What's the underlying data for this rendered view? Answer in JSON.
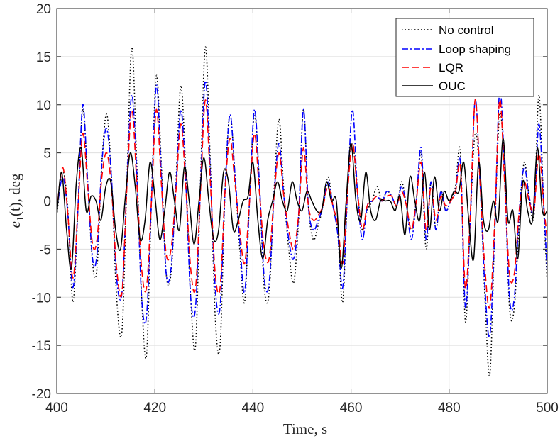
{
  "chart_data": {
    "type": "line",
    "title": "",
    "xlabel": "Time, s",
    "ylabel_main": "e",
    "ylabel_sub": "1",
    "ylabel_rest": "(t), deg",
    "xlim": [
      400,
      500
    ],
    "ylim": [
      -20,
      20
    ],
    "xticks": [
      400,
      420,
      440,
      460,
      480,
      500
    ],
    "yticks": [
      20,
      15,
      10,
      5,
      0,
      -5,
      -10,
      -15,
      -20
    ],
    "grid": true,
    "legend_position": "top-right",
    "series": [
      {
        "name": "No control",
        "color": "#000000",
        "dash": "dotted",
        "x": [
          400,
          401.2,
          402.2,
          403.3,
          404.3,
          405.3,
          406.3,
          407.3,
          408.2,
          409.2,
          410.2,
          411.2,
          412.2,
          413.3,
          414.3,
          415.3,
          416.3,
          417.3,
          418.3,
          419.3,
          420.3,
          421.3,
          422.3,
          423.3,
          424.3,
          425.3,
          426.3,
          427.3,
          428.3,
          429.3,
          430.3,
          431.3,
          432.3,
          433.3,
          434.3,
          435.3,
          436.3,
          437.3,
          438.3,
          439.3,
          440.3,
          441.3,
          442.3,
          443.3,
          444.3,
          445.3,
          446.3,
          447.3,
          448.3,
          449.3,
          450.3,
          451.3,
          452.3,
          453.3,
          454.3,
          455.3,
          456.3,
          457.3,
          458.3,
          459.3,
          460.3,
          461.3,
          462.3,
          463.3,
          464.3,
          465.3,
          466.3,
          467.3,
          468.3,
          469.3,
          470.3,
          471.3,
          472.3,
          473.3,
          474.3,
          475.3,
          476.3,
          477.3,
          478.3,
          479.3,
          480.3,
          481.3,
          482.3,
          483.3,
          484.3,
          485.3,
          486.3,
          487.3,
          488.3,
          489.3,
          490.3,
          491.3,
          492.3,
          493.3,
          494.3,
          495.3,
          496.3,
          497.3,
          498.3,
          499.3,
          500
        ],
        "y": [
          -1.5,
          3.0,
          -0.5,
          -10.5,
          -1,
          9.5,
          2,
          -6.5,
          -7,
          4,
          9,
          2,
          -10,
          -13.5,
          2,
          16,
          4,
          -10,
          -16,
          0,
          13,
          4,
          -7.5,
          -7.5,
          2,
          12,
          3,
          -10,
          -15,
          2,
          16,
          4,
          -12,
          -15,
          1,
          9,
          3,
          -5,
          -10.5,
          0,
          9,
          2,
          -9,
          -9.5,
          1,
          8.5,
          1,
          -5,
          -8.5,
          -2,
          9.5,
          -0.5,
          -4,
          -2.5,
          -0.5,
          2.5,
          -0.5,
          -3.5,
          -10.5,
          1,
          6,
          1,
          -3,
          -1,
          0,
          1.5,
          0,
          1,
          0.5,
          -0.5,
          2,
          -0.5,
          -3,
          0,
          5,
          -5,
          2,
          -3,
          1,
          -1,
          0,
          1.5,
          5,
          -12.5,
          -2,
          7,
          2,
          -10,
          -18,
          -3,
          9,
          3,
          -11,
          -11,
          -2,
          4,
          0.5,
          -1.5,
          11,
          -1,
          -8.5
        ]
      },
      {
        "name": "Loop shaping",
        "color": "#0000ff",
        "dash": "dashdot",
        "x": [
          400,
          401.2,
          402.2,
          403.3,
          404.3,
          405.3,
          406.3,
          407.3,
          408.2,
          409.2,
          410.2,
          411.2,
          412.2,
          413.3,
          414.3,
          415.3,
          416.3,
          417.3,
          418.3,
          419.3,
          420.3,
          421.3,
          422.3,
          423.3,
          424.3,
          425.3,
          426.3,
          427.3,
          428.3,
          429.3,
          430.3,
          431.3,
          432.3,
          433.3,
          434.3,
          435.3,
          436.3,
          437.3,
          438.3,
          439.3,
          440.3,
          441.3,
          442.3,
          443.3,
          444.3,
          445.3,
          446.3,
          447.3,
          448.3,
          449.3,
          450.3,
          451.3,
          452.3,
          453.3,
          454.3,
          455.3,
          456.3,
          457.3,
          458.3,
          459.3,
          460.3,
          461.3,
          462.3,
          463.3,
          464.3,
          465.3,
          466.3,
          467.3,
          468.3,
          469.3,
          470.3,
          471.3,
          472.3,
          473.3,
          474.3,
          475.3,
          476.3,
          477.3,
          478.3,
          479.3,
          480.3,
          481.3,
          482.3,
          483.3,
          484.3,
          485.3,
          486.3,
          487.3,
          488.3,
          489.3,
          490.3,
          491.3,
          492.3,
          493.3,
          494.3,
          495.3,
          496.3,
          497.3,
          498.3,
          499.3,
          500
        ],
        "y": [
          -1,
          2.5,
          -1,
          -9,
          -1,
          10,
          2,
          -6,
          -5.5,
          4,
          7.5,
          2,
          -8,
          -9.5,
          2,
          11,
          3,
          -10,
          -12,
          0,
          12,
          3,
          -7.5,
          -7,
          1.5,
          9.5,
          2,
          -10,
          -11,
          1.5,
          12.5,
          3,
          -9,
          -11,
          1,
          9,
          3,
          -4,
          -9.5,
          0,
          9.5,
          2,
          -8,
          -8.5,
          0.5,
          6,
          0.5,
          -4,
          -6,
          -1.5,
          9.5,
          -0.5,
          -3,
          -2,
          -0.5,
          2,
          -0.5,
          -3.5,
          -9,
          1,
          9.5,
          1,
          -4,
          -0.5,
          0,
          0.5,
          0,
          1,
          0.5,
          -0.5,
          1.5,
          -0.5,
          -4,
          0,
          5.5,
          -4,
          2,
          -3,
          1,
          -1,
          0,
          1,
          4,
          -11,
          -2,
          10.5,
          2,
          -9,
          -14,
          -3,
          11.5,
          3,
          -10,
          -10,
          -1,
          3.5,
          0.5,
          -1,
          8,
          -0.5,
          -7.5
        ]
      },
      {
        "name": "LQR",
        "color": "#ff0000",
        "dash": "dashed",
        "x": [
          400,
          401.2,
          402.2,
          403.3,
          404.3,
          405.3,
          406.3,
          407.3,
          408.2,
          409.2,
          410.2,
          411.2,
          412.2,
          413.3,
          414.3,
          415.3,
          416.3,
          417.3,
          418.3,
          419.3,
          420.3,
          421.3,
          422.3,
          423.3,
          424.3,
          425.3,
          426.3,
          427.3,
          428.3,
          429.3,
          430.3,
          431.3,
          432.3,
          433.3,
          434.3,
          435.3,
          436.3,
          437.3,
          438.3,
          439.3,
          440.3,
          441.3,
          442.3,
          443.3,
          444.3,
          445.3,
          446.3,
          447.3,
          448.3,
          449.3,
          450.3,
          451.3,
          452.3,
          453.3,
          454.3,
          455.3,
          456.3,
          457.3,
          458.3,
          459.3,
          460.3,
          461.3,
          462.3,
          463.3,
          464.3,
          465.3,
          466.3,
          467.3,
          468.3,
          469.3,
          470.3,
          471.3,
          472.3,
          473.3,
          474.3,
          475.3,
          476.3,
          477.3,
          478.3,
          479.3,
          480.3,
          481.3,
          482.3,
          483.3,
          484.3,
          485.3,
          486.3,
          487.3,
          488.3,
          489.3,
          490.3,
          491.3,
          492.3,
          493.3,
          494.3,
          495.3,
          496.3,
          497.3,
          498.3,
          499.3,
          500
        ],
        "y": [
          -1,
          3.5,
          -1,
          -8,
          -1,
          7,
          1.5,
          -4.5,
          -4,
          2.5,
          5,
          1,
          -7,
          -9.5,
          1.5,
          9.5,
          2,
          -7,
          -9,
          0,
          9.5,
          2,
          -5.5,
          -5,
          1,
          8,
          1.5,
          -7,
          -9,
          1,
          10.5,
          2,
          -7.5,
          -9,
          1,
          6.5,
          2,
          -3,
          -6.5,
          0,
          7,
          1,
          -5,
          -6,
          0.5,
          5,
          0.5,
          -3,
          -5,
          -1.5,
          5.5,
          -0.5,
          -2,
          -1.5,
          -0.5,
          1.5,
          -0.5,
          -2.5,
          -6.5,
          1,
          6,
          1,
          -3,
          -0.5,
          0,
          0.5,
          0,
          0.5,
          0.5,
          -0.5,
          1,
          -0.5,
          -3,
          0,
          4,
          -3,
          1.5,
          -2,
          0.5,
          -0.5,
          0,
          1,
          3.5,
          -9,
          -1.5,
          10.5,
          2,
          -7,
          -11,
          -2,
          10.5,
          2,
          -7.5,
          -7.5,
          -1,
          2,
          0,
          -1,
          5,
          -0.5,
          -4
        ]
      },
      {
        "name": "OUC",
        "color": "#000000",
        "dash": "solid",
        "x": [
          400,
          401,
          402,
          403,
          404,
          405,
          406,
          407,
          408,
          409,
          410,
          411,
          412,
          413,
          414,
          415,
          416,
          417,
          418,
          419,
          420,
          421,
          422,
          423,
          424,
          425,
          426,
          427,
          428,
          429,
          430,
          431,
          432,
          433,
          434,
          435,
          436,
          437,
          438,
          439,
          440,
          441,
          442,
          443,
          444,
          445,
          446,
          447,
          448,
          449,
          450,
          451,
          452,
          453,
          454,
          455,
          456,
          457,
          458,
          459,
          460,
          461,
          462,
          463,
          464,
          465,
          466,
          467,
          468,
          469,
          470,
          471,
          472,
          473,
          474,
          475,
          476,
          477,
          478,
          479,
          480,
          481,
          482,
          483,
          484,
          485,
          486,
          487,
          488,
          489,
          490,
          491,
          492,
          493,
          494,
          495,
          496,
          497,
          498,
          499,
          500
        ],
        "y": [
          -1.5,
          3,
          -3,
          -7,
          2,
          5.5,
          -1,
          0.5,
          0,
          -2,
          1.5,
          2,
          -3,
          -5,
          0.5,
          5,
          1.5,
          -4,
          -2,
          4,
          0.5,
          -4,
          -1,
          3,
          0,
          -3,
          3.5,
          0,
          -4.5,
          0,
          4.5,
          0,
          -4,
          -3,
          3,
          2,
          -3,
          -2,
          0,
          0.5,
          4,
          -2,
          -6,
          -2,
          0,
          2,
          0,
          -1,
          2,
          0,
          -1,
          1,
          0,
          -1,
          -1,
          2,
          0,
          0,
          -7,
          0,
          6,
          0,
          -2,
          3,
          -1,
          -2,
          0,
          0,
          0,
          -1,
          0.5,
          -3.5,
          2.5,
          0,
          -2,
          3,
          -3,
          2.5,
          -1,
          1,
          0,
          1,
          1,
          4,
          -2,
          -6,
          4,
          -2,
          -3,
          0,
          -2,
          6.5,
          -2,
          -1,
          -6,
          2,
          -1,
          -2,
          5.5,
          -1,
          -1
        ]
      }
    ]
  }
}
